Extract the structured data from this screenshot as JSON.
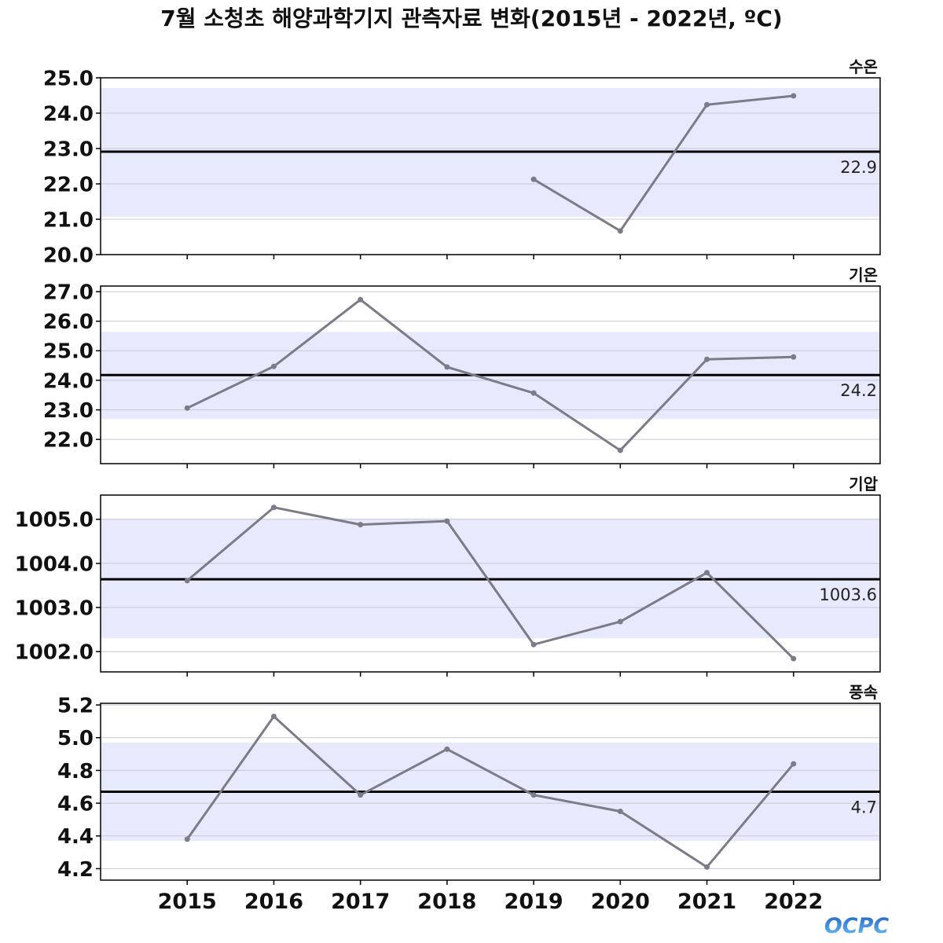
{
  "chart_data": {
    "type": "line",
    "title": "7월 소청초 해양과학기지 관측자료 변화(2015년 - 2022년, ºC)",
    "x": [
      2015,
      2016,
      2017,
      2018,
      2019,
      2020,
      2021,
      2022
    ],
    "xlim": [
      2014,
      2023
    ],
    "colors": {
      "series": "#7c7c88",
      "mean_line": "#000000",
      "band": "#e7eafc",
      "grid": "#c8c8d4"
    },
    "panels": [
      {
        "label": "수온",
        "values": [
          null,
          null,
          null,
          null,
          22.13,
          20.67,
          24.24,
          24.49
        ],
        "mean": 22.91,
        "mean_label": "22.9",
        "band": [
          21.07,
          24.71
        ],
        "ylim": [
          20.0,
          25.0
        ],
        "yticks": [
          "20.0",
          "21.0",
          "22.0",
          "23.0",
          "24.0",
          "25.0"
        ]
      },
      {
        "label": "기온",
        "values": [
          23.06,
          24.47,
          26.73,
          24.45,
          23.57,
          21.63,
          24.71,
          24.79
        ],
        "mean": 24.18,
        "mean_label": "24.2",
        "band": [
          22.69,
          25.64
        ],
        "ylim": [
          21.18,
          27.19
        ],
        "yticks": [
          "22.0",
          "23.0",
          "24.0",
          "25.0",
          "26.0",
          "27.0"
        ]
      },
      {
        "label": "기압",
        "values": [
          1003.61,
          1005.27,
          1004.88,
          1004.96,
          1002.16,
          1002.68,
          1003.79,
          1001.84
        ],
        "mean": 1003.64,
        "mean_label": "1003.6",
        "band": [
          1002.3,
          1005.02
        ],
        "ylim": [
          1001.54,
          1005.55
        ],
        "yticks": [
          "1002.0",
          "1003.0",
          "1004.0",
          "1005.0"
        ]
      },
      {
        "label": "풍속",
        "values": [
          4.38,
          5.13,
          4.65,
          4.93,
          4.65,
          4.55,
          4.21,
          4.84
        ],
        "mean": 4.67,
        "mean_label": "4.7",
        "band": [
          4.37,
          4.97
        ],
        "ylim": [
          4.13,
          5.21
        ],
        "yticks": [
          "4.2",
          "4.4",
          "4.6",
          "4.8",
          "5.0",
          "5.2"
        ]
      }
    ]
  },
  "logo": {
    "text": "OCPC",
    "color_top": "#1e64c8",
    "color_bottom": "#6ec3f0"
  }
}
